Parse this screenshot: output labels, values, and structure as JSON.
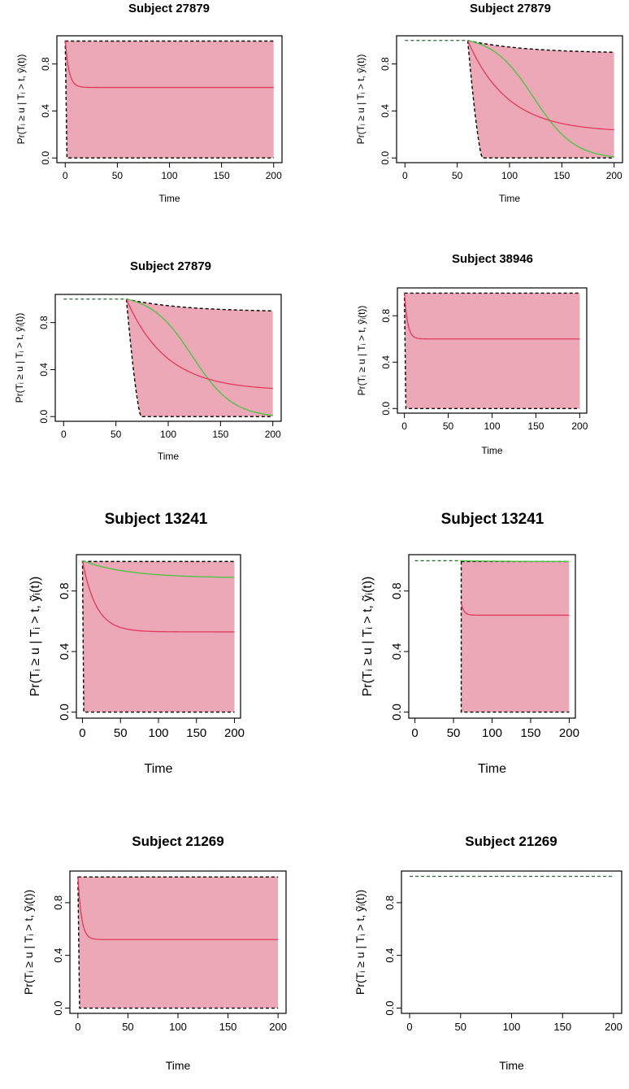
{
  "figure": {
    "ylabel": "Pr(Tᵢ ≥ u | Tᵢ > t, ỹᵢ(t))",
    "colors": {
      "band_fill": "#eda8b8",
      "mean_curve": "#e03a5c",
      "true_curve": "#53c24a",
      "bound_line": "#000000",
      "pre_line": "#2e6b3a",
      "frame": "#000000"
    }
  },
  "chart_data": [
    {
      "type": "line",
      "title": "Subject 27879",
      "xlabel": "Time",
      "xlim": [
        0,
        200
      ],
      "ylim": [
        0,
        1
      ],
      "xticks": [
        0,
        50,
        100,
        150,
        200
      ],
      "yticks": [
        0.0,
        0.4,
        0.8
      ],
      "ytick_labels": [
        "0.0",
        "0.4",
        "0.8"
      ],
      "t_start": 0,
      "band": true,
      "lower_bound": "steep",
      "upper_bound": "flat",
      "mean_curve": {
        "start": 1.0,
        "end": 0.6,
        "shape": "fast"
      },
      "true_curve": null,
      "pre_start_line": false
    },
    {
      "type": "line",
      "title": "Subject 27879",
      "xlabel": "Time",
      "xlim": [
        0,
        200
      ],
      "ylim": [
        0,
        1
      ],
      "xticks": [
        0,
        50,
        100,
        150,
        200
      ],
      "yticks": [
        0.0,
        0.4,
        0.8
      ],
      "ytick_labels": [
        "0.0",
        "0.4",
        "0.8"
      ],
      "t_start": 60,
      "band": true,
      "lower_bound": "steep",
      "upper_bound": "slow",
      "mean_curve": {
        "start": 1.0,
        "end": 0.24,
        "shape": "exp"
      },
      "true_curve": {
        "start": 1.0,
        "end": 0.01,
        "shape": "sigmoid"
      },
      "pre_start_line": true
    },
    {
      "type": "line",
      "title": "Subject 27879",
      "xlabel": "Time",
      "xlim": [
        0,
        200
      ],
      "ylim": [
        0,
        1
      ],
      "xticks": [
        0,
        50,
        100,
        150,
        200
      ],
      "yticks": [
        0.0,
        0.4,
        0.8
      ],
      "ytick_labels": [
        "0.0",
        "0.4",
        "0.8"
      ],
      "t_start": 60,
      "band": true,
      "lower_bound": "steep",
      "upper_bound": "slow",
      "mean_curve": {
        "start": 1.0,
        "end": 0.24,
        "shape": "exp"
      },
      "true_curve": {
        "start": 1.0,
        "end": 0.01,
        "shape": "sigmoid"
      },
      "pre_start_line": true
    },
    {
      "type": "line",
      "title": "Subject 38946",
      "xlabel": "Time",
      "xlim": [
        0,
        200
      ],
      "ylim": [
        0,
        1
      ],
      "xticks": [
        0,
        50,
        100,
        150,
        200
      ],
      "yticks": [
        0.0,
        0.4,
        0.8
      ],
      "ytick_labels": [
        "0.0",
        "0.4",
        "0.8"
      ],
      "t_start": 0,
      "band": true,
      "lower_bound": "steep",
      "upper_bound": "flat",
      "mean_curve": {
        "start": 1.0,
        "end": 0.6,
        "shape": "fast"
      },
      "true_curve": null,
      "pre_start_line": false
    },
    {
      "type": "line",
      "title": "Subject 13241",
      "xlabel": "Time",
      "xlim": [
        0,
        200
      ],
      "ylim": [
        0,
        1
      ],
      "xticks": [
        0,
        50,
        100,
        150,
        200
      ],
      "yticks": [
        0.0,
        0.4,
        0.8
      ],
      "ytick_labels": [
        "0.0",
        "0.4",
        "0.8"
      ],
      "t_start": 0,
      "band": true,
      "lower_bound": "steep",
      "upper_bound": "flat",
      "mean_curve": {
        "start": 1.0,
        "end": 0.53,
        "shape": "medium"
      },
      "true_curve": {
        "start": 1.0,
        "end": 0.89,
        "shape": "gentle"
      },
      "pre_start_line": false
    },
    {
      "type": "line",
      "title": "Subject 13241",
      "xlabel": "Time",
      "xlim": [
        0,
        200
      ],
      "ylim": [
        0,
        1
      ],
      "xticks": [
        0,
        50,
        100,
        150,
        200
      ],
      "yticks": [
        0.0,
        0.4,
        0.8
      ],
      "ytick_labels": [
        "0.0",
        "0.4",
        "0.8"
      ],
      "t_start": 60,
      "band": true,
      "lower_bound": "vertical",
      "upper_bound": "flat",
      "mean_curve": {
        "start": 0.72,
        "end": 0.64,
        "shape": "fast"
      },
      "true_curve": {
        "start": 1.0,
        "end": 0.995,
        "shape": "gentle"
      },
      "pre_start_line": true
    },
    {
      "type": "line",
      "title": "Subject 21269",
      "xlabel": "Time",
      "xlim": [
        0,
        200
      ],
      "ylim": [
        0,
        1
      ],
      "xticks": [
        0,
        50,
        100,
        150,
        200
      ],
      "yticks": [
        0.0,
        0.4,
        0.8
      ],
      "ytick_labels": [
        "0.0",
        "0.4",
        "0.8"
      ],
      "t_start": 0,
      "band": true,
      "lower_bound": "steep",
      "upper_bound": "flat",
      "mean_curve": {
        "start": 1.0,
        "end": 0.52,
        "shape": "fast"
      },
      "true_curve": null,
      "pre_start_line": false
    },
    {
      "type": "line",
      "title": "Subject 21269",
      "xlabel": "Time",
      "xlim": [
        0,
        200
      ],
      "ylim": [
        0,
        1
      ],
      "xticks": [
        0,
        50,
        100,
        150,
        200
      ],
      "yticks": [
        0.0,
        0.4,
        0.8
      ],
      "ytick_labels": [
        "0.0",
        "0.4",
        "0.8"
      ],
      "t_start": 200,
      "band": false,
      "lower_bound": null,
      "upper_bound": null,
      "mean_curve": null,
      "true_curve": null,
      "pre_start_line": true
    }
  ]
}
